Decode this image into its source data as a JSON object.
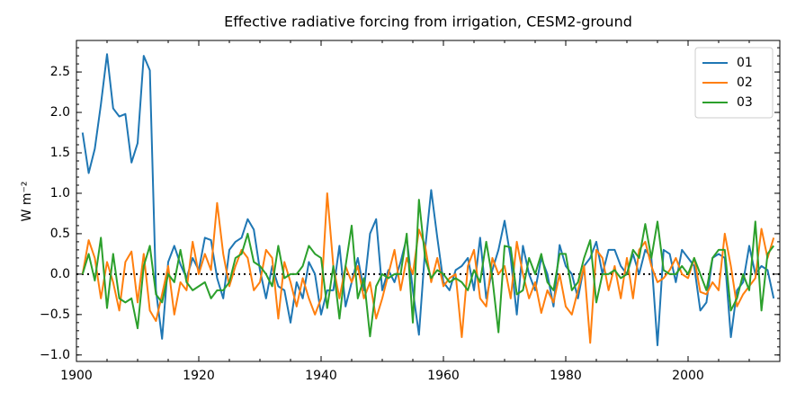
{
  "chart_data": {
    "type": "line",
    "title": "Effective radiative forcing from irrigation, CESM2-ground",
    "y_label": "W m⁻²",
    "x": [
      1901,
      1902,
      1903,
      1904,
      1905,
      1906,
      1907,
      1908,
      1909,
      1910,
      1911,
      1912,
      1913,
      1914,
      1915,
      1916,
      1917,
      1918,
      1919,
      1920,
      1921,
      1922,
      1923,
      1924,
      1925,
      1926,
      1927,
      1928,
      1929,
      1930,
      1931,
      1932,
      1933,
      1934,
      1935,
      1936,
      1937,
      1938,
      1939,
      1940,
      1941,
      1942,
      1943,
      1944,
      1945,
      1946,
      1947,
      1948,
      1949,
      1950,
      1951,
      1952,
      1953,
      1954,
      1955,
      1956,
      1957,
      1958,
      1959,
      1960,
      1961,
      1962,
      1963,
      1964,
      1965,
      1966,
      1967,
      1968,
      1969,
      1970,
      1971,
      1972,
      1973,
      1974,
      1975,
      1976,
      1977,
      1978,
      1979,
      1980,
      1981,
      1982,
      1983,
      1984,
      1985,
      1986,
      1987,
      1988,
      1989,
      1990,
      1991,
      1992,
      1993,
      1994,
      1995,
      1996,
      1997,
      1998,
      1999,
      2000,
      2001,
      2002,
      2003,
      2004,
      2005,
      2006,
      2007,
      2008,
      2009,
      2010,
      2011,
      2012,
      2013,
      2014
    ],
    "series": [
      {
        "name": "01",
        "color": "#1f77b4",
        "values": [
          1.75,
          1.25,
          1.55,
          2.1,
          2.72,
          2.05,
          1.95,
          1.98,
          1.38,
          1.62,
          2.7,
          2.52,
          -0.2,
          -0.8,
          0.15,
          0.35,
          0.12,
          -0.05,
          0.2,
          0.05,
          0.45,
          0.42,
          -0.05,
          -0.3,
          0.3,
          0.4,
          0.45,
          0.68,
          0.55,
          0.05,
          -0.3,
          0.1,
          -0.15,
          -0.2,
          -0.6,
          -0.1,
          -0.3,
          0.15,
          0.0,
          -0.5,
          -0.2,
          -0.2,
          0.35,
          -0.4,
          -0.1,
          0.2,
          -0.2,
          0.5,
          0.68,
          -0.2,
          0.05,
          -0.1,
          0.15,
          0.45,
          -0.2,
          -0.75,
          0.3,
          1.04,
          0.45,
          -0.1,
          -0.2,
          0.05,
          0.1,
          0.2,
          -0.2,
          0.45,
          -0.3,
          0.05,
          0.3,
          0.66,
          0.2,
          -0.5,
          0.35,
          0.0,
          -0.2,
          0.2,
          0.0,
          -0.4,
          0.36,
          0.1,
          0.0,
          -0.3,
          0.1,
          0.2,
          0.4,
          0.0,
          0.3,
          0.3,
          0.1,
          0.0,
          0.25,
          0.0,
          0.3,
          0.2,
          -0.88,
          0.3,
          0.25,
          -0.1,
          0.3,
          0.2,
          0.1,
          -0.45,
          -0.35,
          0.2,
          0.25,
          0.2,
          -0.78,
          -0.2,
          -0.1,
          0.35,
          0.0,
          0.1,
          0.05,
          -0.3
        ]
      },
      {
        "name": "02",
        "color": "#ff7f0e",
        "values": [
          0.0,
          0.42,
          0.2,
          -0.3,
          0.15,
          -0.1,
          -0.45,
          0.15,
          0.28,
          -0.35,
          0.25,
          -0.45,
          -0.58,
          -0.25,
          0.1,
          -0.5,
          -0.1,
          -0.2,
          0.4,
          0.0,
          0.25,
          0.05,
          0.88,
          0.25,
          -0.15,
          0.1,
          0.3,
          0.2,
          -0.2,
          -0.1,
          0.3,
          0.2,
          -0.55,
          0.15,
          -0.1,
          -0.4,
          -0.05,
          -0.3,
          -0.5,
          -0.3,
          1.0,
          0.1,
          -0.3,
          0.1,
          -0.1,
          0.1,
          -0.3,
          -0.1,
          -0.55,
          -0.3,
          0.0,
          0.3,
          -0.2,
          0.2,
          0.0,
          0.55,
          0.35,
          -0.1,
          0.2,
          -0.15,
          -0.05,
          0.0,
          -0.78,
          0.1,
          0.3,
          -0.3,
          -0.4,
          0.2,
          0.0,
          0.1,
          -0.3,
          0.4,
          0.0,
          -0.3,
          -0.1,
          -0.48,
          -0.2,
          -0.35,
          0.0,
          -0.4,
          -0.5,
          -0.2,
          0.1,
          -0.85,
          0.3,
          0.2,
          -0.2,
          0.1,
          -0.3,
          0.2,
          -0.3,
          0.3,
          0.4,
          0.1,
          -0.1,
          -0.05,
          0.05,
          0.2,
          0.0,
          -0.05,
          0.2,
          -0.22,
          -0.25,
          -0.1,
          -0.2,
          0.5,
          0.1,
          -0.4,
          -0.25,
          -0.15,
          -0.05,
          0.56,
          0.2,
          0.45
        ]
      },
      {
        "name": "03",
        "color": "#2ca02c",
        "values": [
          0.0,
          0.25,
          -0.08,
          0.45,
          -0.42,
          0.25,
          -0.3,
          -0.35,
          -0.3,
          -0.67,
          0.1,
          0.35,
          -0.25,
          -0.35,
          0.0,
          -0.1,
          0.3,
          -0.1,
          -0.2,
          -0.15,
          -0.1,
          -0.3,
          -0.2,
          -0.2,
          -0.1,
          0.2,
          0.25,
          0.5,
          0.15,
          0.1,
          0.0,
          -0.15,
          0.35,
          -0.05,
          0.0,
          0.0,
          0.1,
          0.35,
          0.25,
          0.2,
          -0.42,
          0.1,
          -0.55,
          0.1,
          0.6,
          -0.3,
          -0.05,
          -0.77,
          -0.15,
          0.0,
          -0.05,
          0.0,
          0.0,
          0.5,
          -0.6,
          0.92,
          0.2,
          -0.05,
          0.05,
          0.0,
          -0.1,
          -0.05,
          -0.1,
          -0.2,
          0.05,
          -0.1,
          0.4,
          -0.05,
          -0.72,
          0.35,
          0.33,
          -0.25,
          -0.2,
          0.2,
          0.0,
          0.25,
          -0.1,
          -0.2,
          0.25,
          0.25,
          -0.2,
          -0.1,
          0.2,
          0.42,
          -0.35,
          0.0,
          0.0,
          0.05,
          -0.05,
          0.0,
          0.3,
          0.2,
          0.62,
          0.2,
          0.65,
          0.05,
          0.0,
          0.0,
          0.1,
          0.0,
          0.2,
          0.0,
          -0.2,
          0.2,
          0.3,
          0.3,
          -0.45,
          -0.3,
          0.0,
          -0.2,
          0.65,
          -0.45,
          0.25,
          0.35
        ]
      }
    ],
    "xlim": [
      1900,
      2015
    ],
    "xticks": [
      1900,
      1920,
      1940,
      1960,
      1980,
      2000
    ],
    "ylim": [
      -1.08,
      2.89
    ],
    "yticks": [
      {
        "value": -1.0,
        "label": "−1.0"
      },
      {
        "value": -0.5,
        "label": "−0.5"
      },
      {
        "value": 0.0,
        "label": "0.0"
      },
      0.5,
      {
        "value": 1.0,
        "label": "1.0"
      },
      1.5,
      {
        "value": 2.0,
        "label": "2.0"
      },
      2.5
    ],
    "reference_line": 0,
    "legend": "upper right",
    "grid": false
  }
}
